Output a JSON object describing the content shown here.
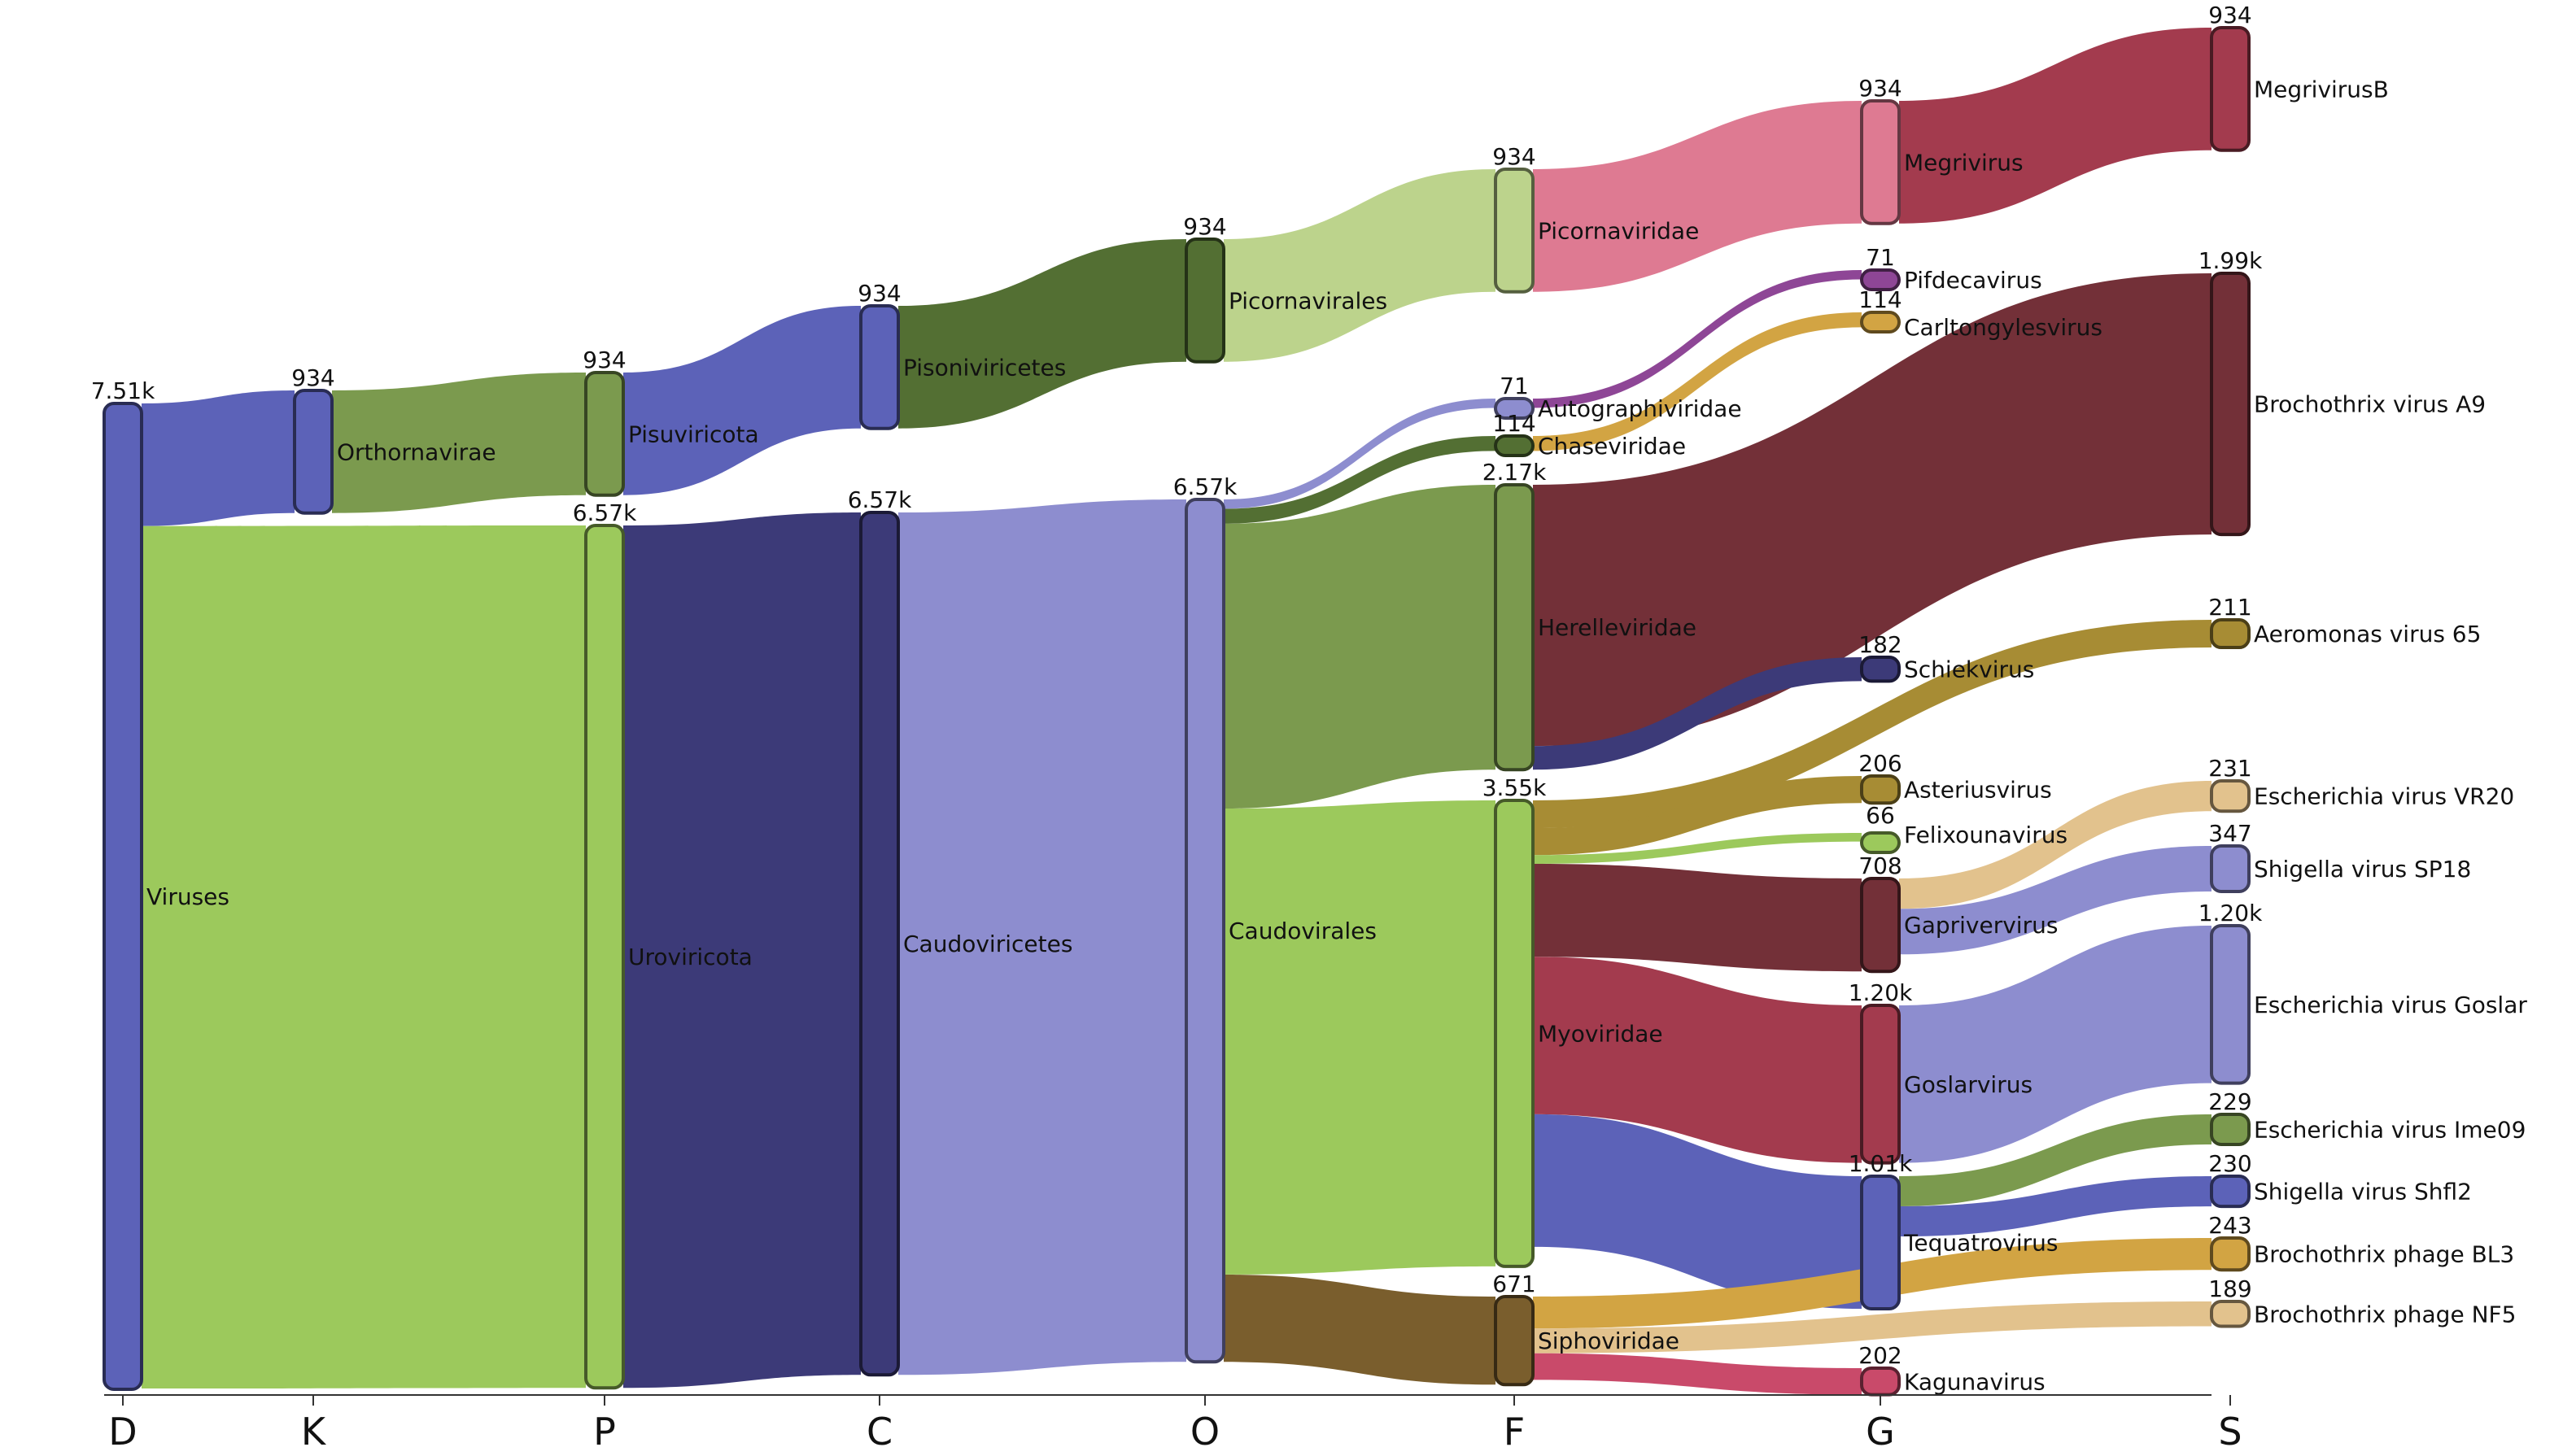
{
  "chart_data": {
    "type": "sankey",
    "levels": [
      "D",
      "K",
      "P",
      "C",
      "O",
      "F",
      "G",
      "S"
    ],
    "colors": {
      "blue": "#5c62b8",
      "ygreen": "#9cc95c",
      "ogreen": "#7b9a4e",
      "navy": "#3c3a78",
      "lavender": "#8d8dcf",
      "dgreen": "#536f33",
      "lgreen": "#bcd38c",
      "pink": "#de7a92",
      "maroon": "#733038",
      "crimson": "#a33b4e",
      "purple": "#8e4696",
      "gold": "#d2a443",
      "olive": "#a78c34",
      "tan": "#e2c28d",
      "brown": "#7a5e2d",
      "rose": "#c94a6a"
    },
    "nodes": [
      {
        "id": "viruses",
        "name": "Viruses",
        "value_label": "7.51k",
        "value": 7510,
        "level": 0,
        "color": "blue"
      },
      {
        "id": "orthornavirae",
        "name": "Orthornavirae",
        "value_label": "934",
        "value": 934,
        "level": 1,
        "color": "blue"
      },
      {
        "id": "pisuviricota",
        "name": "Pisuviricota",
        "value_label": "934",
        "value": 934,
        "level": 2,
        "color": "ogreen"
      },
      {
        "id": "uroviricota",
        "name": "Uroviricota",
        "value_label": "6.57k",
        "value": 6570,
        "level": 2,
        "color": "ygreen"
      },
      {
        "id": "pisoniviricetes",
        "name": "Pisoniviricetes",
        "value_label": "934",
        "value": 934,
        "level": 3,
        "color": "blue"
      },
      {
        "id": "caudoviricetes",
        "name": "Caudoviricetes",
        "value_label": "6.57k",
        "value": 6570,
        "level": 3,
        "color": "navy"
      },
      {
        "id": "picornavirales",
        "name": "Picornavirales",
        "value_label": "934",
        "value": 934,
        "level": 4,
        "color": "dgreen"
      },
      {
        "id": "caudovirales",
        "name": "Caudovirales",
        "value_label": "6.57k",
        "value": 6570,
        "level": 4,
        "color": "lavender"
      },
      {
        "id": "picornaviridae",
        "name": "Picornaviridae",
        "value_label": "934",
        "value": 934,
        "level": 5,
        "color": "lgreen"
      },
      {
        "id": "autographiviridae",
        "name": "Autographiviridae",
        "value_label": "71",
        "value": 71,
        "level": 5,
        "color": "lavender"
      },
      {
        "id": "chaseviridae",
        "name": "Chaseviridae",
        "value_label": "114",
        "value": 114,
        "level": 5,
        "color": "dgreen"
      },
      {
        "id": "herelleviridae",
        "name": "Herelleviridae",
        "value_label": "2.17k",
        "value": 2170,
        "level": 5,
        "color": "ogreen"
      },
      {
        "id": "myoviridae",
        "name": "Myoviridae",
        "value_label": "3.55k",
        "value": 3550,
        "level": 5,
        "color": "ygreen"
      },
      {
        "id": "siphoviridae",
        "name": "Siphoviridae",
        "value_label": "671",
        "value": 671,
        "level": 5,
        "color": "brown"
      },
      {
        "id": "megrivirus",
        "name": "Megrivirus",
        "value_label": "934",
        "value": 934,
        "level": 6,
        "color": "pink"
      },
      {
        "id": "pifdecavirus",
        "name": "Pifdecavirus",
        "value_label": "71",
        "value": 71,
        "level": 6,
        "color": "purple"
      },
      {
        "id": "carltongylesvirus",
        "name": "Carltongylesvirus",
        "value_label": "114",
        "value": 114,
        "level": 6,
        "color": "gold"
      },
      {
        "id": "schiekvirus",
        "name": "Schiekvirus",
        "value_label": "182",
        "value": 182,
        "level": 6,
        "color": "navy"
      },
      {
        "id": "asteriusvirus",
        "name": "Asteriusvirus",
        "value_label": "206",
        "value": 206,
        "level": 6,
        "color": "olive"
      },
      {
        "id": "felixounavirus",
        "name": "Felixounavirus",
        "value_label": "66",
        "value": 66,
        "level": 6,
        "color": "ygreen"
      },
      {
        "id": "gaprivervirus",
        "name": "Gaprivervirus",
        "value_label": "708",
        "value": 708,
        "level": 6,
        "color": "maroon"
      },
      {
        "id": "goslarvirus",
        "name": "Goslarvirus",
        "value_label": "1.20k",
        "value": 1200,
        "level": 6,
        "color": "crimson"
      },
      {
        "id": "tequatrovirus",
        "name": "Tequatrovirus",
        "value_label": "1.01k",
        "value": 1010,
        "level": 6,
        "color": "blue"
      },
      {
        "id": "kagunavirus",
        "name": "Kagunavirus",
        "value_label": "202",
        "value": 202,
        "level": 6,
        "color": "rose"
      },
      {
        "id": "megrivirusb",
        "name": "MegrivirusB",
        "value_label": "934",
        "value": 934,
        "level": 7,
        "color": "crimson"
      },
      {
        "id": "brochothrix_a9",
        "name": "Brochothrix virus A9",
        "value_label": "1.99k",
        "value": 1990,
        "level": 7,
        "color": "maroon"
      },
      {
        "id": "aeromonas_65",
        "name": "Aeromonas virus 65",
        "value_label": "211",
        "value": 211,
        "level": 7,
        "color": "olive"
      },
      {
        "id": "ecoli_vr20",
        "name": "Escherichia virus VR20",
        "value_label": "231",
        "value": 231,
        "level": 7,
        "color": "tan"
      },
      {
        "id": "shigella_sp18",
        "name": "Shigella virus SP18",
        "value_label": "347",
        "value": 347,
        "level": 7,
        "color": "lavender"
      },
      {
        "id": "ecoli_goslar",
        "name": "Escherichia virus Goslar",
        "value_label": "1.20k",
        "value": 1200,
        "level": 7,
        "color": "lavender"
      },
      {
        "id": "ecoli_ime09",
        "name": "Escherichia virus Ime09",
        "value_label": "229",
        "value": 229,
        "level": 7,
        "color": "ogreen"
      },
      {
        "id": "shigella_shfl2",
        "name": "Shigella virus Shfl2",
        "value_label": "230",
        "value": 230,
        "level": 7,
        "color": "blue"
      },
      {
        "id": "brochothrix_bl3",
        "name": "Brochothrix phage BL3",
        "value_label": "243",
        "value": 243,
        "level": 7,
        "color": "gold"
      },
      {
        "id": "brochothrix_nf5",
        "name": "Brochothrix phage NF5",
        "value_label": "189",
        "value": 189,
        "level": 7,
        "color": "tan"
      }
    ],
    "links": [
      {
        "source": "viruses",
        "target": "orthornavirae",
        "value": 934
      },
      {
        "source": "viruses",
        "target": "uroviricota",
        "value": 6570
      },
      {
        "source": "orthornavirae",
        "target": "pisuviricota",
        "value": 934
      },
      {
        "source": "pisuviricota",
        "target": "pisoniviricetes",
        "value": 934
      },
      {
        "source": "uroviricota",
        "target": "caudoviricetes",
        "value": 6570
      },
      {
        "source": "pisoniviricetes",
        "target": "picornavirales",
        "value": 934
      },
      {
        "source": "caudoviricetes",
        "target": "caudovirales",
        "value": 6570
      },
      {
        "source": "picornavirales",
        "target": "picornaviridae",
        "value": 934
      },
      {
        "source": "caudovirales",
        "target": "autographiviridae",
        "value": 71
      },
      {
        "source": "caudovirales",
        "target": "chaseviridae",
        "value": 114
      },
      {
        "source": "caudovirales",
        "target": "herelleviridae",
        "value": 2170
      },
      {
        "source": "caudovirales",
        "target": "myoviridae",
        "value": 3550
      },
      {
        "source": "caudovirales",
        "target": "siphoviridae",
        "value": 671
      },
      {
        "source": "picornaviridae",
        "target": "megrivirus",
        "value": 934
      },
      {
        "source": "autographiviridae",
        "target": "pifdecavirus",
        "value": 71
      },
      {
        "source": "chaseviridae",
        "target": "carltongylesvirus",
        "value": 114
      },
      {
        "source": "herelleviridae",
        "target": "brochothrix_a9",
        "value": 1990
      },
      {
        "source": "herelleviridae",
        "target": "schiekvirus",
        "value": 182
      },
      {
        "source": "myoviridae",
        "target": "aeromonas_65",
        "value": 211
      },
      {
        "source": "myoviridae",
        "target": "asteriusvirus",
        "value": 206
      },
      {
        "source": "myoviridae",
        "target": "felixounavirus",
        "value": 66
      },
      {
        "source": "myoviridae",
        "target": "gaprivervirus",
        "value": 708
      },
      {
        "source": "myoviridae",
        "target": "goslarvirus",
        "value": 1200
      },
      {
        "source": "myoviridae",
        "target": "tequatrovirus",
        "value": 1010
      },
      {
        "source": "siphoviridae",
        "target": "brochothrix_bl3",
        "value": 243
      },
      {
        "source": "siphoviridae",
        "target": "brochothrix_nf5",
        "value": 189
      },
      {
        "source": "siphoviridae",
        "target": "kagunavirus",
        "value": 202
      },
      {
        "source": "megrivirus",
        "target": "megrivirusb",
        "value": 934
      },
      {
        "source": "gaprivervirus",
        "target": "ecoli_vr20",
        "value": 231
      },
      {
        "source": "gaprivervirus",
        "target": "shigella_sp18",
        "value": 347
      },
      {
        "source": "goslarvirus",
        "target": "ecoli_goslar",
        "value": 1200
      },
      {
        "source": "tequatrovirus",
        "target": "ecoli_ime09",
        "value": 229
      },
      {
        "source": "tequatrovirus",
        "target": "shigella_shfl2",
        "value": 230
      }
    ]
  }
}
